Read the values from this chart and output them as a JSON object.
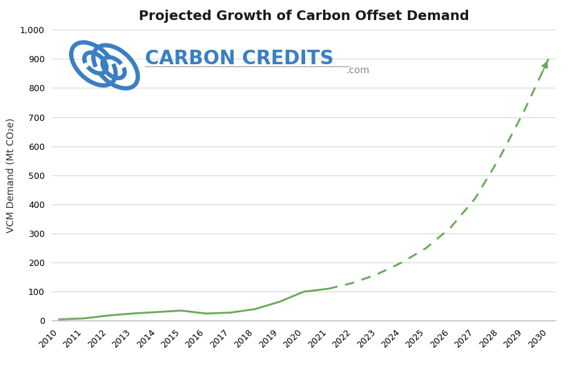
{
  "title": "Projected Growth of Carbon Offset Demand",
  "ylabel": "VCM Demand (Mt CO₂e)",
  "ylim": [
    0,
    1000
  ],
  "yticks": [
    0,
    100,
    200,
    300,
    400,
    500,
    600,
    700,
    800,
    900,
    1000
  ],
  "xlim_start": 2010,
  "xlim_end": 2030,
  "line_color": "#6aaa5a",
  "background_color": "#ffffff",
  "solid_x": [
    2010,
    2011,
    2012,
    2013,
    2014,
    2015,
    2016,
    2017,
    2018,
    2019,
    2020,
    2021
  ],
  "solid_y": [
    5,
    8,
    18,
    25,
    30,
    35,
    25,
    28,
    40,
    65,
    100,
    110
  ],
  "dashed_x": [
    2021,
    2022,
    2023,
    2024,
    2025,
    2026,
    2027,
    2028,
    2029,
    2030
  ],
  "dashed_y": [
    110,
    130,
    160,
    200,
    250,
    320,
    420,
    560,
    720,
    900
  ],
  "title_fontsize": 14,
  "axis_label_fontsize": 10,
  "tick_fontsize": 9,
  "logo_text": "CARBON CREDITS",
  "logo_dot_com": ".com",
  "logo_text_color": "#3a7fc1",
  "logo_dot_com_color": "#888888",
  "logo_line_color": "#aaaaaa",
  "grid_color": "#d5d5d5",
  "spine_color": "#aaaaaa"
}
